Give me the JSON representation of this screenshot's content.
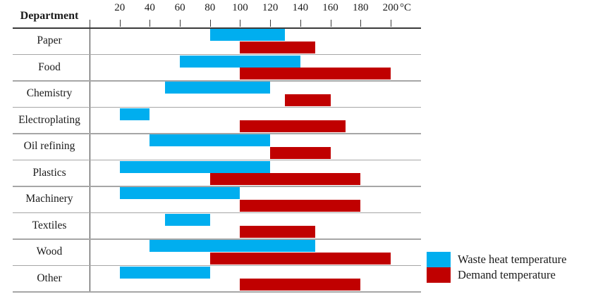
{
  "table": {
    "header": "Department"
  },
  "axis": {
    "unit": "°C",
    "ticks": [
      20,
      40,
      60,
      80,
      100,
      120,
      140,
      160,
      180,
      200
    ]
  },
  "legend": [
    {
      "label": "Waste heat temperature",
      "color": "#00AEEF"
    },
    {
      "label": "Demand temperature",
      "color": "#C00000"
    }
  ],
  "chart_data": {
    "type": "bar",
    "subtype": "horizontal-range",
    "corner_label": "Department",
    "xlabel": "°C",
    "xlim": [
      0,
      210
    ],
    "x_ticks": [
      20,
      40,
      60,
      80,
      100,
      120,
      140,
      160,
      180,
      200
    ],
    "grid": "row-separators-only",
    "legend_position": "bottom-right",
    "categories": [
      "Paper",
      "Food",
      "Chemistry",
      "Electroplating",
      "Oil refining",
      "Plastics",
      "Machinery",
      "Textiles",
      "Wood",
      "Other"
    ],
    "series": [
      {
        "name": "Waste heat temperature",
        "color": "#00AEEF",
        "ranges": [
          [
            80,
            130
          ],
          [
            60,
            140
          ],
          [
            50,
            120
          ],
          [
            20,
            40
          ],
          [
            40,
            120
          ],
          [
            20,
            120
          ],
          [
            20,
            100
          ],
          [
            50,
            80
          ],
          [
            40,
            150
          ],
          [
            20,
            80
          ]
        ]
      },
      {
        "name": "Demand temperature",
        "color": "#C00000",
        "ranges": [
          [
            100,
            150
          ],
          [
            100,
            200
          ],
          [
            130,
            160
          ],
          [
            100,
            170
          ],
          [
            120,
            160
          ],
          [
            80,
            180
          ],
          [
            100,
            180
          ],
          [
            100,
            150
          ],
          [
            80,
            200
          ],
          [
            100,
            180
          ]
        ]
      }
    ]
  }
}
